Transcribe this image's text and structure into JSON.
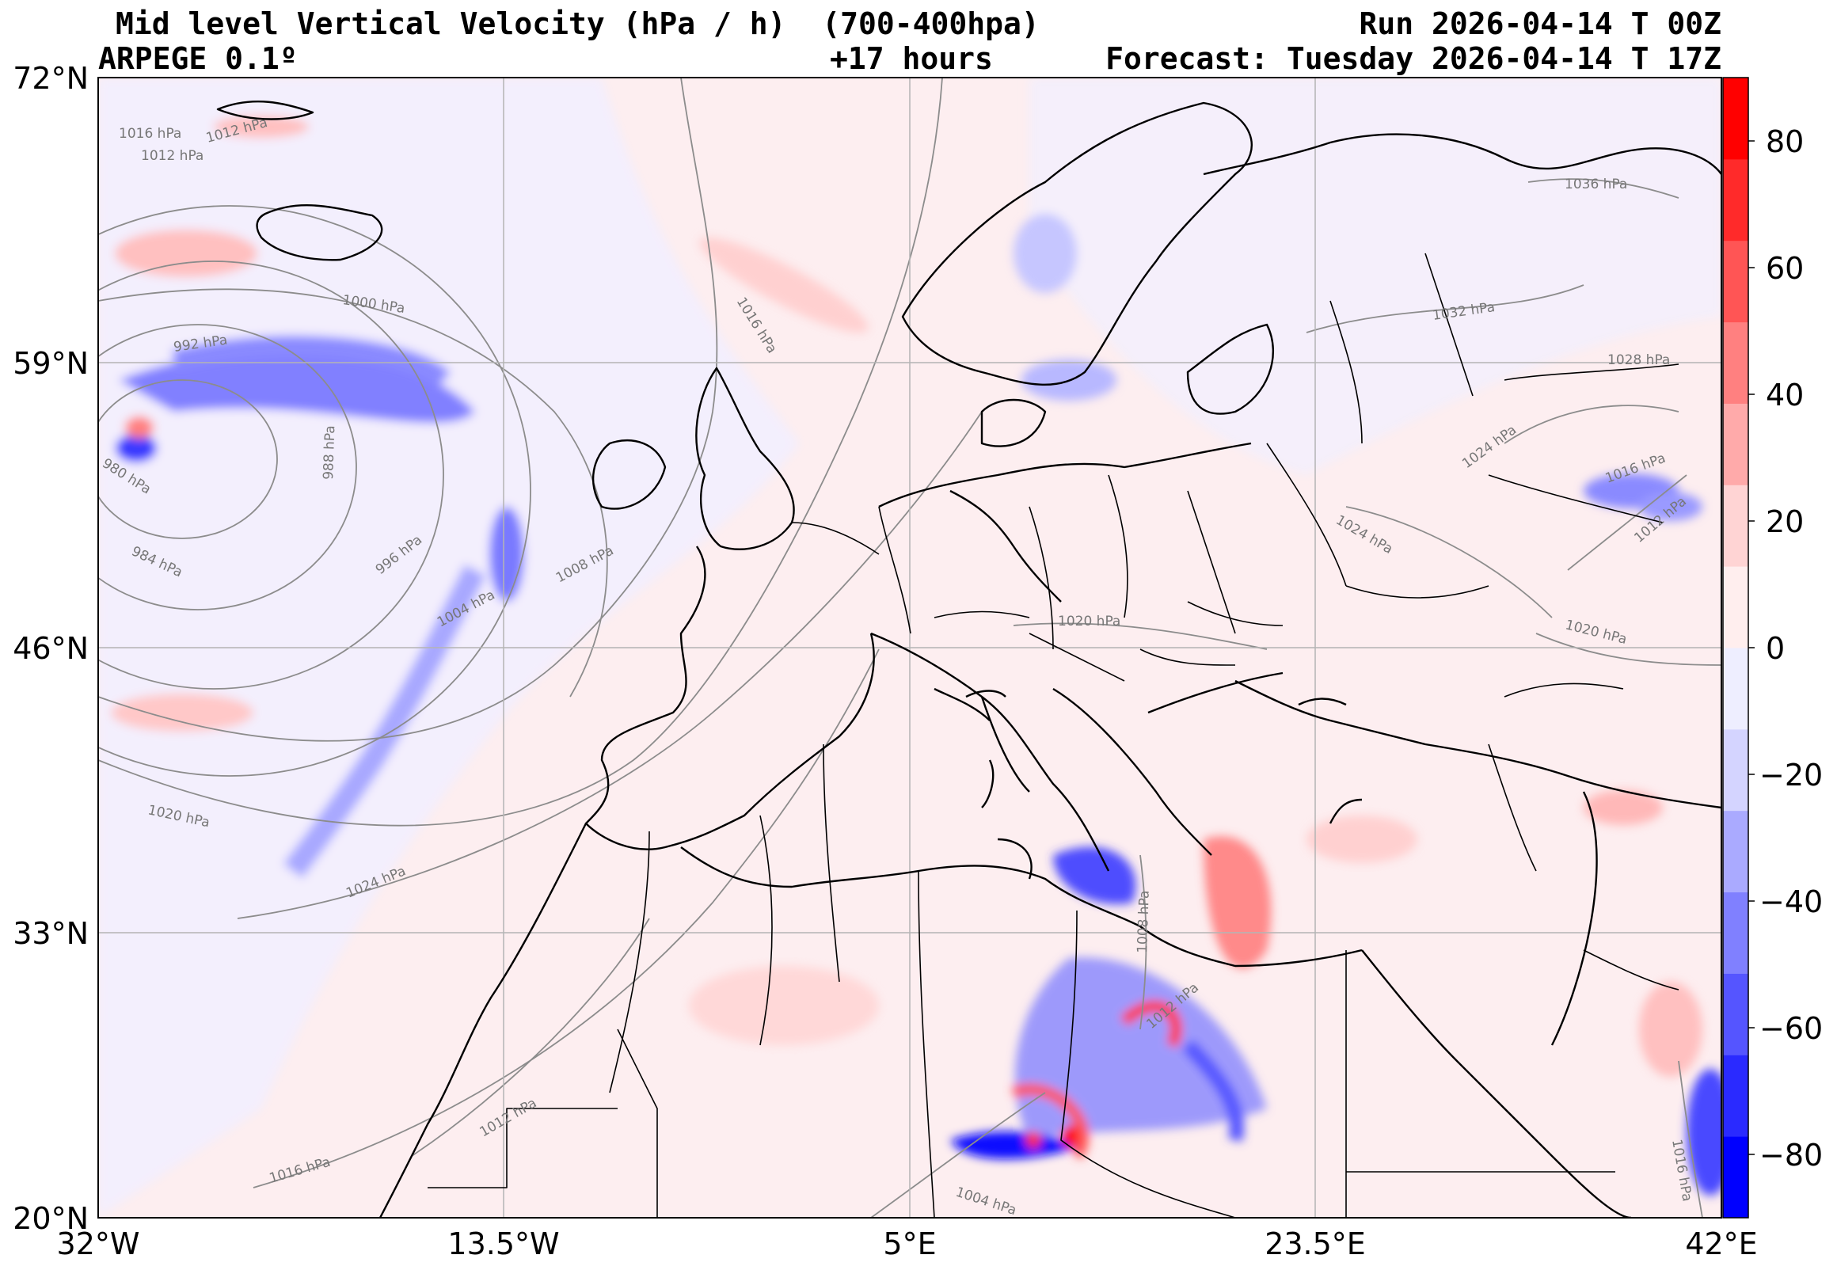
{
  "header": {
    "title": "Mid level Vertical Velocity (hPa / h)  (700-400hpa)",
    "model": "ARPEGE 0.1º",
    "run": "Run 2026-04-14 T 00Z",
    "lead": "+17 hours",
    "forecast": "Forecast: Tuesday 2026-04-14 T 17Z"
  },
  "axes": {
    "lat_ticks": [
      "72°N",
      "59°N",
      "46°N",
      "33°N",
      "20°N"
    ],
    "lon_ticks": [
      "32°W",
      "13.5°W",
      "5°E",
      "23.5°E",
      "42°E"
    ]
  },
  "colorbar": {
    "ticks": [
      "80",
      "60",
      "40",
      "20",
      "0",
      "−20",
      "−40",
      "−60",
      "−80"
    ],
    "range": [
      -90,
      90
    ],
    "colors": [
      "#0000ff",
      "#2a2aff",
      "#5555ff",
      "#8080ff",
      "#aaaaff",
      "#d4d4ff",
      "#eeeeff",
      "#ffeeee",
      "#ffd4d4",
      "#ffaaaa",
      "#ff8080",
      "#ff5555",
      "#ff2a2a",
      "#ff0000"
    ]
  },
  "isobar_labels": [
    "1016 hPa",
    "1012 hPa",
    "1012 hPa",
    "1000 hPa",
    "992 hPa",
    "980 hPa",
    "988 hPa",
    "984 hPa",
    "996 hPa",
    "1004 hPa",
    "1008 hPa",
    "1016 hPa",
    "1020 hPa",
    "1024 hPa",
    "1012 hPa",
    "1016 hPa",
    "1020 hPa",
    "1008 hPa",
    "1012 hPa",
    "1004 hPa",
    "1036 hPa",
    "1032 hPa",
    "1028 hPa",
    "1024 hPa",
    "1016 hPa",
    "1012 hPa",
    "1024 hPa",
    "1020 hPa",
    "1016 hPa"
  ]
}
